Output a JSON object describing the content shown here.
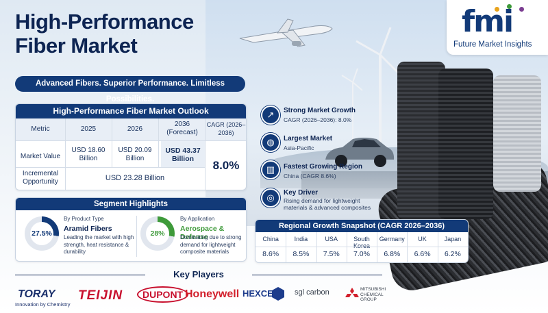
{
  "title": "High-Performance Fiber Market",
  "logo": {
    "mark": "fmi",
    "name": "Future Market Insights"
  },
  "tagline": "Advanced Fibers. Superior Performance. Limitless Possibilities.",
  "outlook": {
    "heading": "High-Performance Fiber Market Outlook",
    "columns": [
      "Metric",
      "2025",
      "2026",
      "2036 (Forecast)",
      "CAGR (2026–2036)"
    ],
    "market_value": {
      "label": "Market Value",
      "v2025": "USD 18.60 Billion",
      "v2026": "USD 20.09 Billion",
      "v2036": "USD 43.37 Billion"
    },
    "incremental": {
      "label": "Incremental Opportunity",
      "value": "USD 23.28 Billion"
    },
    "cagr": "8.0%"
  },
  "features": [
    {
      "icon": "growth-chart-icon",
      "title": "Strong Market Growth",
      "sub": "CAGR (2026–2036): 8.0%"
    },
    {
      "icon": "globe-icon",
      "title": "Largest Market",
      "sub": "Asia-Pacific"
    },
    {
      "icon": "bar-chart-icon",
      "title": "Fastest Growing Region",
      "sub": "China (CAGR 8.6%)"
    },
    {
      "icon": "target-icon",
      "title": "Key Driver",
      "sub": "Rising demand for lightweight materials & advanced composites"
    }
  ],
  "segments": {
    "heading": "Segment Highlights",
    "product": {
      "caption": "By Product Type",
      "share": "27.5%",
      "share_value": 27.5,
      "name": "Aramid Fibers",
      "desc": "Leading the market with high strength, heat resistance & durability",
      "color": "#123a78"
    },
    "application": {
      "caption": "By Application",
      "share": "28%",
      "share_value": 28,
      "name": "Aerospace & Defense",
      "desc": "Dominating due to strong demand for lightweight composite materials",
      "color": "#3e9a3a"
    }
  },
  "regional": {
    "heading": "Regional Growth Snapshot (CAGR 2026–2036)",
    "countries": [
      "China",
      "India",
      "USA",
      "South Korea",
      "Germany",
      "UK",
      "Japan"
    ],
    "values": [
      "8.6%",
      "8.5%",
      "7.5%",
      "7.0%",
      "6.8%",
      "6.6%",
      "6.2%"
    ]
  },
  "key_players": {
    "heading": "Key Players",
    "toray": "TORAY",
    "toray_sub": "Innovation by Chemistry",
    "teijin": "TEIJIN",
    "dupont": "DUPONT",
    "honeywell": "Honeywell",
    "hexcel": "HEXCEL",
    "sgl": "sgl carbon",
    "mitsubishi": "MITSUBISHI CHEMICAL GROUP"
  },
  "colors": {
    "navy": "#123a78",
    "green": "#3e9a3a"
  }
}
